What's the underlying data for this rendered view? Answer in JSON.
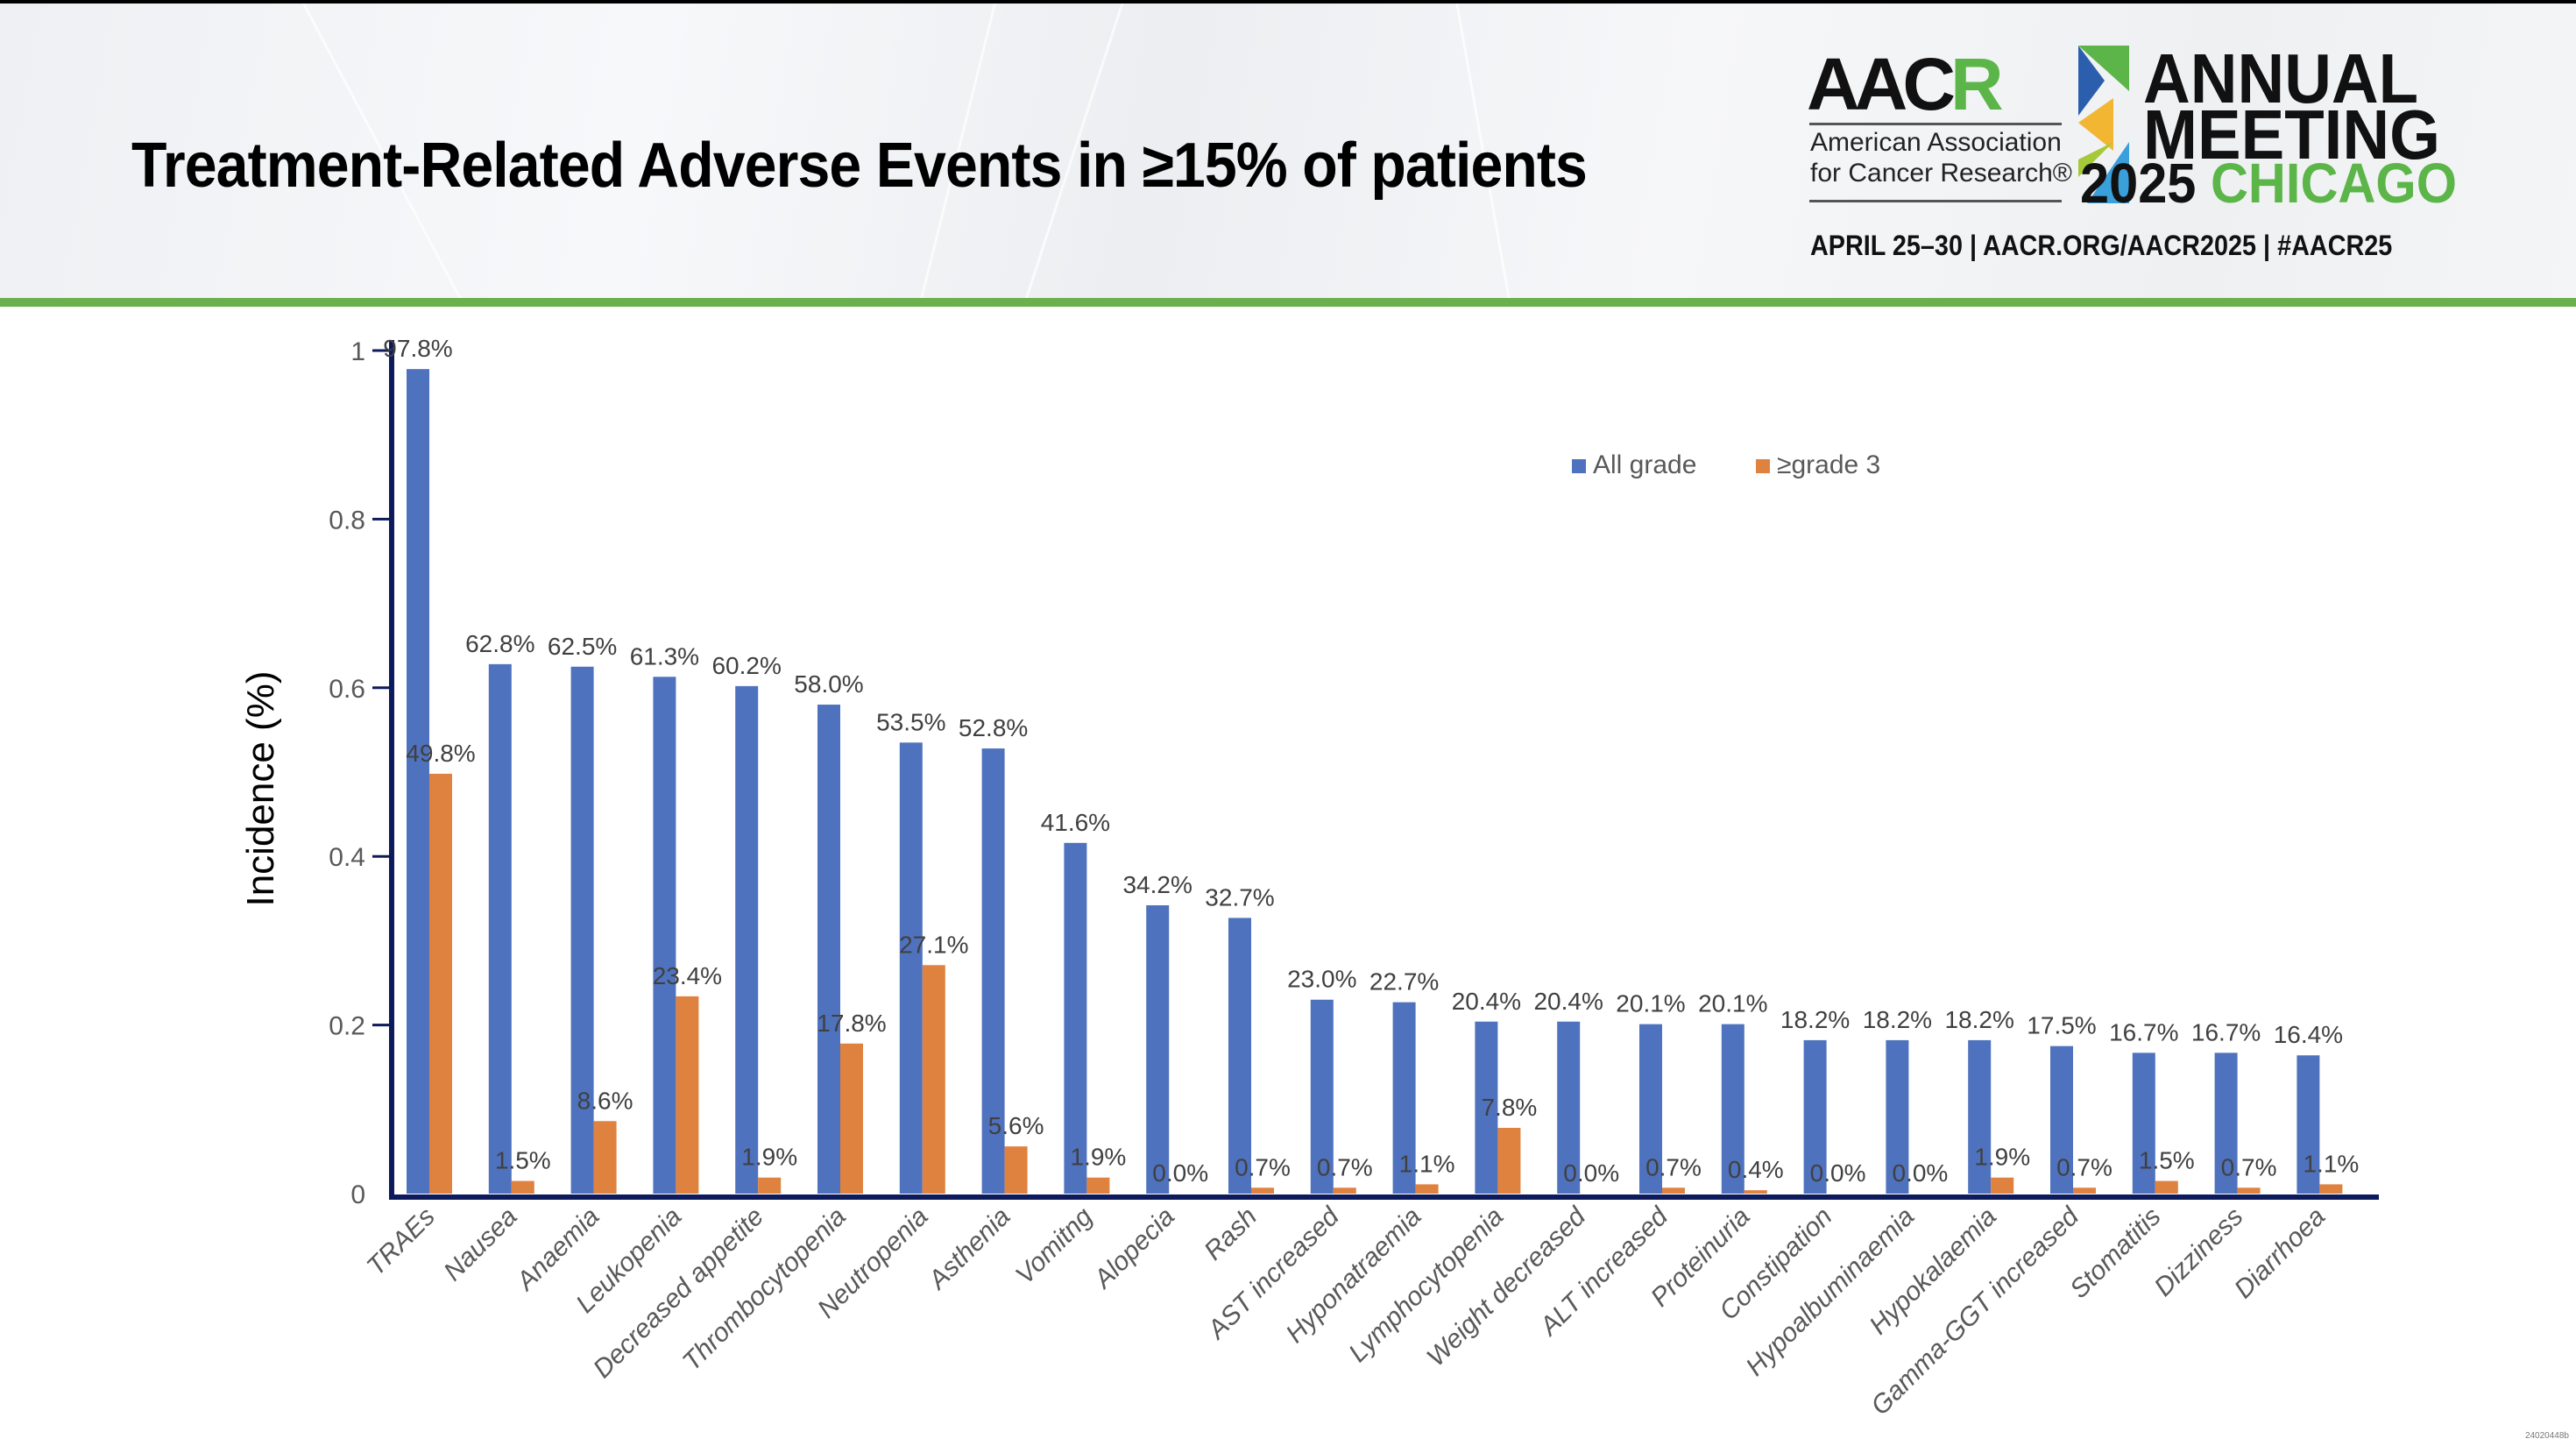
{
  "header": {
    "title": "Treatment-Related Adverse Events in ≥15% of patients",
    "logo": {
      "aacr_prefix": "AAC",
      "aacr_suffix": "R",
      "org_line1": "American Association",
      "org_line2": "for Cancer Research®",
      "annual": "ANNUAL",
      "meeting": "MEETING",
      "year": "2025",
      "city": "CHICAGO",
      "date_line": "APRIL 25–30  |  AACR.ORG/AACR2025  |  #AACR25"
    },
    "accent_color": "#6ab04c"
  },
  "footnote": "24020448b",
  "chart_data": {
    "type": "bar",
    "title": "",
    "xlabel": "",
    "ylabel": "Incidence (%)",
    "ylim": [
      0,
      1
    ],
    "yticks": [
      0,
      0.2,
      0.4,
      0.6,
      0.8,
      1
    ],
    "ytick_labels": [
      "0",
      "0.2",
      "0.4",
      "0.6",
      "0.8",
      "1"
    ],
    "grid": false,
    "legend_position": "top-right",
    "categories": [
      "TRAEs",
      "Nausea",
      "Anaemia",
      "Leukopenia",
      "Decreased appetite",
      "Thrombocytopenia",
      "Neutropenia",
      "Asthenia",
      "Vomitng",
      "Alopecia",
      "Rash",
      "AST increased",
      "Hyponatraemia",
      "Lymphocytopenia",
      "Weight decreased",
      "ALT increased",
      "Proteinuria",
      "Constipation",
      "Hypoalbuminaemia",
      "Hypokalaemia",
      "Gamma-GGT increased",
      "Stomatitis",
      "Dizziness",
      "Diarrhoea"
    ],
    "series": [
      {
        "name": "All grade",
        "color": "#4f72be",
        "values": [
          0.978,
          0.628,
          0.625,
          0.613,
          0.602,
          0.58,
          0.535,
          0.528,
          0.416,
          0.342,
          0.327,
          0.23,
          0.227,
          0.204,
          0.204,
          0.201,
          0.201,
          0.182,
          0.182,
          0.182,
          0.175,
          0.167,
          0.167,
          0.164
        ],
        "labels": [
          "97.8%",
          "62.8%",
          "62.5%",
          "61.3%",
          "60.2%",
          "58.0%",
          "53.5%",
          "52.8%",
          "41.6%",
          "34.2%",
          "32.7%",
          "23.0%",
          "22.7%",
          "20.4%",
          "20.4%",
          "20.1%",
          "20.1%",
          "18.2%",
          "18.2%",
          "18.2%",
          "17.5%",
          "16.7%",
          "16.7%",
          "16.4%"
        ]
      },
      {
        "name": "≥grade 3",
        "color": "#e0823f",
        "values": [
          0.498,
          0.015,
          0.086,
          0.234,
          0.019,
          0.178,
          0.271,
          0.056,
          0.019,
          0.0,
          0.007,
          0.007,
          0.011,
          0.078,
          0.0,
          0.007,
          0.004,
          0.0,
          0.0,
          0.019,
          0.007,
          0.015,
          0.007,
          0.011
        ],
        "labels": [
          "49.8%",
          "1.5%",
          "8.6%",
          "23.4%",
          "1.9%",
          "17.8%",
          "27.1%",
          "5.6%",
          "1.9%",
          "0.0%",
          "0.7%",
          "0.7%",
          "1.1%",
          "7.8%",
          "0.0%",
          "0.7%",
          "0.4%",
          "0.0%",
          "0.0%",
          "1.9%",
          "0.7%",
          "1.5%",
          "0.7%",
          "1.1%"
        ]
      }
    ],
    "axis_color": "#0d1a5c"
  }
}
